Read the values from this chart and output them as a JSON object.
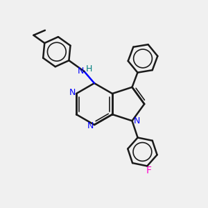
{
  "bg_color": "#f0f0f0",
  "bond_color": "#1a1a1a",
  "n_color": "#0000ff",
  "f_color": "#ff00cc",
  "h_color": "#008080",
  "bond_width": 1.8,
  "inner_lw": 1.2,
  "fig_width": 3.0,
  "fig_height": 3.0,
  "dpi": 100,
  "xlim": [
    0,
    10
  ],
  "ylim": [
    0,
    10
  ]
}
